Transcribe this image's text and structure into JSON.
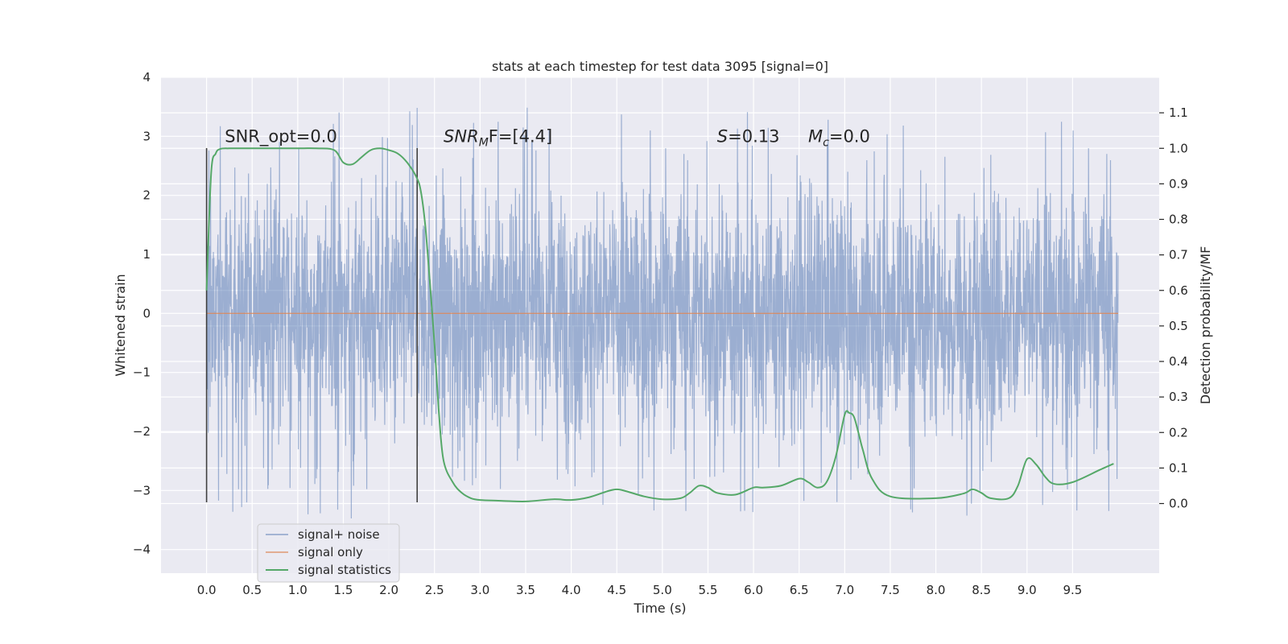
{
  "chart_data": {
    "type": "line",
    "title": "stats at each timestep for test data 3095 [signal=0]",
    "xlabel": "Time (s)",
    "ylabel": "Whitened strain",
    "y2label": "Detection probability/MF",
    "xlim": [
      -0.5,
      10.45
    ],
    "ylim": [
      -4.4,
      4
    ],
    "y2lim": [
      -0.196,
      1.2
    ],
    "xticks": [
      0.0,
      0.5,
      1.0,
      1.5,
      2.0,
      2.5,
      3.0,
      3.5,
      4.0,
      4.5,
      5.0,
      5.5,
      6.0,
      6.5,
      7.0,
      7.5,
      8.0,
      8.5,
      9.0,
      9.5
    ],
    "xtick_labels": [
      "0.0",
      "0.5",
      "1.0",
      "1.5",
      "2.0",
      "2.5",
      "3.0",
      "3.5",
      "4.0",
      "4.5",
      "5.0",
      "5.5",
      "6.0",
      "6.5",
      "7.0",
      "7.5",
      "8.0",
      "8.5",
      "9.0",
      "9.5"
    ],
    "yticks": [
      -4,
      -3,
      -2,
      -1,
      0,
      1,
      2,
      3,
      4
    ],
    "ytick_labels": [
      "−4",
      "−3",
      "−2",
      "−1",
      "0",
      "1",
      "2",
      "3",
      "4"
    ],
    "y2ticks": [
      0.0,
      0.1,
      0.2,
      0.3,
      0.4,
      0.5,
      0.6,
      0.7,
      0.8,
      0.9,
      1.0,
      1.1
    ],
    "y2tick_labels": [
      "0.0",
      "0.1",
      "0.2",
      "0.3",
      "0.4",
      "0.5",
      "0.6",
      "0.7",
      "0.8",
      "0.9",
      "1.0",
      "1.1"
    ],
    "grid": true,
    "legend_position": "lower-left",
    "background_color": "#eaeaf2",
    "noise": {
      "name": "signal+ noise",
      "color": "#4c72b0",
      "x_range": [
        0,
        10
      ],
      "typical_std": 1.0,
      "peak_max": 3.6,
      "peak_min": -4.0
    },
    "signal": {
      "name": "signal only",
      "color": "#dd8452",
      "x": [
        0,
        10
      ],
      "y": [
        0,
        0
      ]
    },
    "statistics": {
      "name": "signal statistics",
      "color": "#55a868",
      "x": [
        0.0,
        0.05,
        0.1,
        0.15,
        0.25,
        0.5,
        0.8,
        1.0,
        1.2,
        1.4,
        1.5,
        1.6,
        1.7,
        1.8,
        1.9,
        2.0,
        2.1,
        2.2,
        2.3,
        2.35,
        2.4,
        2.45,
        2.5,
        2.55,
        2.6,
        2.7,
        2.8,
        2.9,
        3.0,
        3.2,
        3.5,
        3.8,
        4.0,
        4.2,
        4.4,
        4.5,
        4.6,
        4.8,
        5.0,
        5.2,
        5.3,
        5.4,
        5.5,
        5.6,
        5.8,
        6.0,
        6.1,
        6.3,
        6.5,
        6.6,
        6.7,
        6.8,
        6.9,
        7.0,
        7.05,
        7.1,
        7.15,
        7.2,
        7.3,
        7.5,
        8.0,
        8.3,
        8.4,
        8.5,
        8.6,
        8.8,
        8.9,
        9.0,
        9.1,
        9.2,
        9.3,
        9.5,
        9.8,
        9.95
      ],
      "y": [
        0.6,
        0.93,
        0.985,
        0.998,
        1.0,
        1.0,
        1.0,
        1.0,
        1.0,
        0.995,
        0.96,
        0.955,
        0.975,
        0.995,
        1.0,
        0.995,
        0.985,
        0.96,
        0.92,
        0.88,
        0.78,
        0.62,
        0.45,
        0.25,
        0.12,
        0.06,
        0.03,
        0.015,
        0.01,
        0.008,
        0.006,
        0.012,
        0.01,
        0.018,
        0.035,
        0.04,
        0.035,
        0.02,
        0.012,
        0.015,
        0.03,
        0.05,
        0.045,
        0.03,
        0.025,
        0.045,
        0.045,
        0.05,
        0.07,
        0.06,
        0.045,
        0.06,
        0.13,
        0.25,
        0.255,
        0.245,
        0.2,
        0.15,
        0.07,
        0.02,
        0.015,
        0.028,
        0.04,
        0.03,
        0.015,
        0.015,
        0.05,
        0.125,
        0.11,
        0.075,
        0.055,
        0.06,
        0.095,
        0.112
      ]
    },
    "vertical_markers": {
      "x": [
        0.0,
        2.31
      ],
      "y_range": [
        -3.2,
        2.8
      ],
      "color": "#404040"
    },
    "annotations": [
      {
        "x": 0.2,
        "y": 2.9,
        "prefix": "SNR_opt=0.0",
        "sub": "",
        "suffix": ""
      },
      {
        "x": 2.6,
        "y": 2.9,
        "prefix": "SNR",
        "sub": "M",
        "suffix": "F=[4.4]",
        "italic_prefix": true
      },
      {
        "x": 5.6,
        "y": 2.9,
        "prefix": "S",
        "sub": "",
        "suffix": "=0.13",
        "italic_prefix": true
      },
      {
        "x": 6.6,
        "y": 2.9,
        "prefix": "M",
        "sub": "c",
        "suffix": "=0.0",
        "italic_prefix": true
      }
    ]
  }
}
